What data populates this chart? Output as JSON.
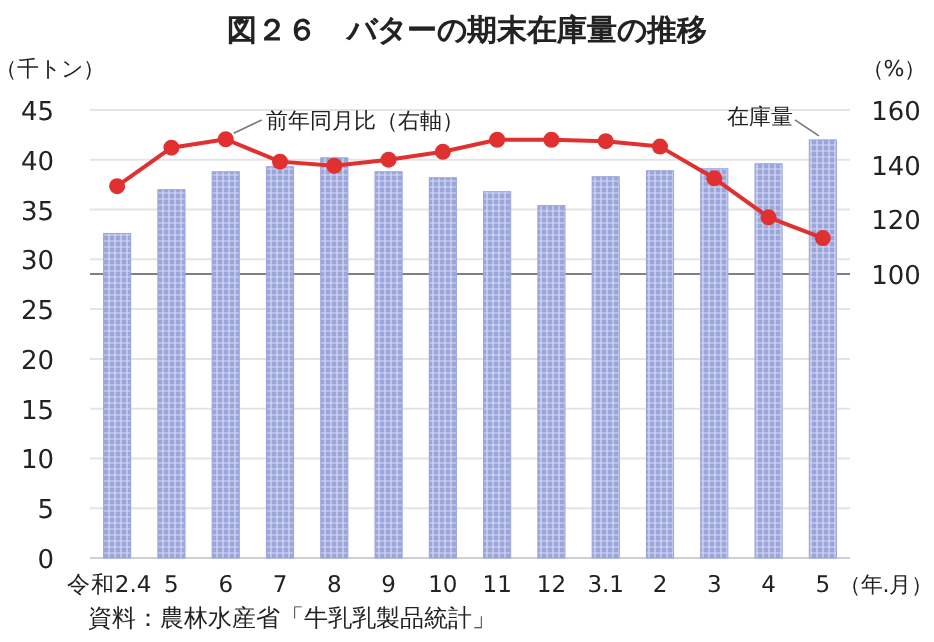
{
  "chart_data": {
    "type": "bar",
    "title": "図２６　バターの期末在庫量の推移",
    "ylabel": "（千トン）",
    "y2label": "（%）",
    "xlabel": "（年.月）",
    "categories": [
      "令和2.4",
      "5",
      "6",
      "7",
      "8",
      "9",
      "10",
      "11",
      "12",
      "3.1",
      "2",
      "3",
      "4",
      "5"
    ],
    "series": [
      {
        "name": "在庫量",
        "color": "#9aa5dc",
        "values": [
          32.6,
          37.0,
          38.8,
          39.3,
          40.2,
          38.8,
          38.2,
          36.8,
          35.4,
          38.3,
          38.9,
          39.1,
          39.6,
          42.0
        ]
      },
      {
        "name": "前年同月比（右軸）",
        "type": "line",
        "axis": "y2",
        "color": "#e03030",
        "marker": "circle",
        "values": [
          132.1,
          146.2,
          149.3,
          141.1,
          139.6,
          141.8,
          144.7,
          149.1,
          149.1,
          148.6,
          146.6,
          135.0,
          120.7,
          113.1
        ]
      }
    ],
    "ylim": [
      0,
      45
    ],
    "yticks": [
      0,
      5,
      10,
      15,
      20,
      25,
      30,
      35,
      40,
      45
    ],
    "y2lim": [
      -4,
      160
    ],
    "y2ticks": [
      100,
      120,
      140,
      160
    ],
    "ref_lines": [
      {
        "axis": "y2",
        "value": 100,
        "color": "#808080"
      }
    ],
    "grid": "y",
    "annotations": [
      "資料：農林水産省「牛乳乳製品統計」"
    ]
  }
}
